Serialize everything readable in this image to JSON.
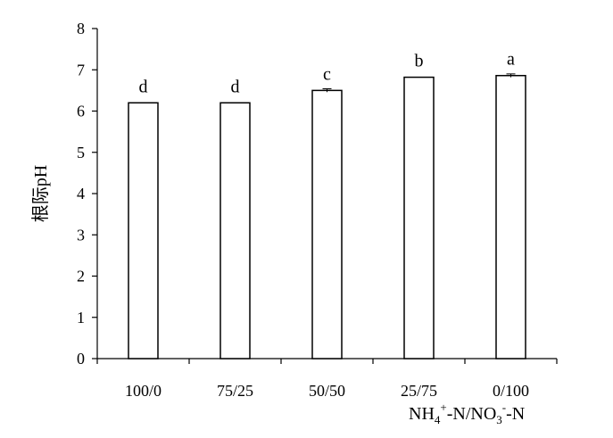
{
  "chart_data": {
    "type": "bar",
    "categories": [
      "100/0",
      "75/25",
      "50/50",
      "25/75",
      "0/100"
    ],
    "values": [
      6.2,
      6.2,
      6.5,
      6.82,
      6.86
    ],
    "errors": [
      0,
      0,
      0.04,
      0,
      0.04
    ],
    "significance_letters": [
      "d",
      "d",
      "c",
      "b",
      "a"
    ],
    "ylabel": "根际pH",
    "xlabel": {
      "parts": [
        {
          "text": "NH",
          "sup": "",
          "sub": ""
        },
        {
          "text": "",
          "sub": "4",
          "sup": ""
        },
        {
          "text": "",
          "sup": "+",
          "sub": ""
        },
        {
          "text": "-N/NO",
          "sup": "",
          "sub": ""
        },
        {
          "text": "",
          "sub": "3",
          "sup": ""
        },
        {
          "text": "",
          "sup": "-",
          "sub": ""
        },
        {
          "text": "-N",
          "sup": "",
          "sub": ""
        }
      ]
    },
    "ylim": [
      0,
      8
    ],
    "yticks": [
      0,
      1,
      2,
      3,
      4,
      5,
      6,
      7,
      8
    ],
    "grid": false,
    "bar_fill": "#ffffff",
    "bar_stroke": "#000000"
  }
}
